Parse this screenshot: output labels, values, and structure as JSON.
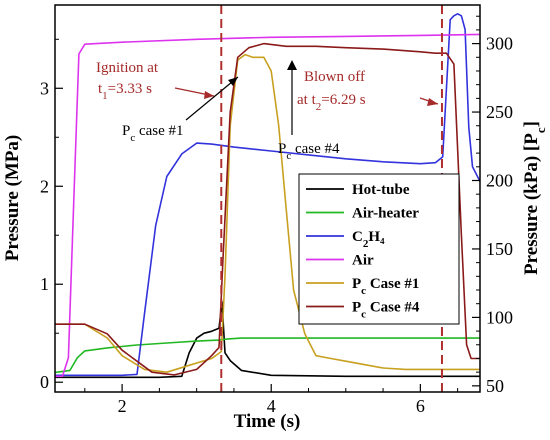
{
  "chart_data": {
    "type": "line",
    "xlabel": "Time (s)",
    "ylabel": "Pressure (MPa)",
    "y2label": "Pressure (kPa) [P",
    "y2label_sub": "c",
    "y2label_end": "]",
    "xlim": [
      1.1,
      6.8
    ],
    "ylim": [
      -0.1,
      3.85
    ],
    "y2lim": [
      45.5,
      328.2
    ],
    "x_ticks": [
      2,
      4,
      6
    ],
    "y_ticks": [
      0,
      1,
      2,
      3
    ],
    "y2_ticks": [
      50,
      100,
      150,
      200,
      250,
      300
    ],
    "grid": false,
    "legend_position": "center-right",
    "series": [
      {
        "name": "Hot-tube",
        "sub": "",
        "name_end": "",
        "axis": "left",
        "color": "#000000",
        "x": [
          1.1,
          1.5,
          2.0,
          2.5,
          2.8,
          2.9,
          3.0,
          3.1,
          3.2,
          3.3,
          3.34,
          3.38,
          3.45,
          3.6,
          4.0,
          5.0,
          6.0,
          6.8
        ],
        "y": [
          0.05,
          0.05,
          0.05,
          0.05,
          0.06,
          0.3,
          0.45,
          0.5,
          0.52,
          0.55,
          0.82,
          0.3,
          0.22,
          0.12,
          0.07,
          0.06,
          0.06,
          0.06
        ]
      },
      {
        "name": "Air-heater",
        "sub": "",
        "name_end": "",
        "axis": "left",
        "color": "#22b822",
        "x": [
          1.1,
          1.3,
          1.4,
          1.5,
          1.8,
          2.2,
          2.6,
          3.0,
          3.3,
          3.4,
          3.6,
          4.0,
          5.0,
          6.0,
          6.8
        ],
        "y": [
          0.1,
          0.12,
          0.25,
          0.32,
          0.35,
          0.38,
          0.4,
          0.42,
          0.43,
          0.44,
          0.45,
          0.45,
          0.45,
          0.45,
          0.45
        ]
      },
      {
        "name": "C",
        "sub": "2",
        "name_end": "H₄",
        "axis": "left",
        "color": "#3333dd",
        "x": [
          1.1,
          2.0,
          2.2,
          2.3,
          2.45,
          2.6,
          2.8,
          3.0,
          3.2,
          3.5,
          4.0,
          4.5,
          5.0,
          5.5,
          6.0,
          6.2,
          6.3,
          6.4,
          6.45,
          6.5,
          6.55,
          6.6,
          6.65,
          6.7,
          6.8
        ],
        "y": [
          0.07,
          0.07,
          0.08,
          0.7,
          1.6,
          2.1,
          2.33,
          2.44,
          2.43,
          2.4,
          2.36,
          2.32,
          2.28,
          2.25,
          2.23,
          2.24,
          2.3,
          3.7,
          3.74,
          3.76,
          3.74,
          3.6,
          2.6,
          2.2,
          2.05
        ]
      },
      {
        "name": "Air",
        "sub": "",
        "name_end": "",
        "axis": "left",
        "color": "#dd33ee",
        "x": [
          1.1,
          1.2,
          1.28,
          1.35,
          1.42,
          1.5,
          2.0,
          3.0,
          4.0,
          5.0,
          6.0,
          6.8
        ],
        "y": [
          0.06,
          0.06,
          0.25,
          1.8,
          3.35,
          3.45,
          3.47,
          3.5,
          3.52,
          3.53,
          3.54,
          3.55
        ]
      },
      {
        "name": "P",
        "sub": "c",
        "name_end": " Case #1",
        "axis": "right",
        "color": "#c8a020",
        "x": [
          1.1,
          1.5,
          1.8,
          2.0,
          2.3,
          2.6,
          2.9,
          3.2,
          3.33,
          3.38,
          3.45,
          3.55,
          3.65,
          3.75,
          3.9,
          4.0,
          4.1,
          4.2,
          4.3,
          4.45,
          4.6,
          4.8,
          5.0,
          5.3,
          5.5,
          5.8,
          6.0,
          6.8
        ],
        "y": [
          95,
          95,
          85,
          72,
          62,
          60,
          65,
          70,
          75,
          130,
          240,
          288,
          292,
          290,
          290,
          280,
          240,
          180,
          120,
          88,
          72,
          70,
          68,
          65,
          63,
          62,
          62,
          62
        ]
      },
      {
        "name": "P",
        "sub": "c",
        "name_end": " Case #4",
        "axis": "right",
        "color": "#8b1a1a",
        "x": [
          1.1,
          1.5,
          1.8,
          2.0,
          2.2,
          2.4,
          2.7,
          3.0,
          3.2,
          3.3,
          3.35,
          3.45,
          3.55,
          3.7,
          3.9,
          4.2,
          4.6,
          5.0,
          5.5,
          6.0,
          6.2,
          6.35,
          6.45,
          6.55,
          6.62,
          6.68,
          6.8
        ],
        "y": [
          95,
          95,
          88,
          76,
          68,
          60,
          58,
          62,
          72,
          78,
          140,
          250,
          290,
          297,
          300,
          298,
          298,
          297,
          296,
          294,
          293,
          293,
          285,
          160,
          80,
          70,
          70
        ]
      }
    ],
    "events": [
      {
        "x": 3.33,
        "color": "#b03030"
      },
      {
        "x": 6.29,
        "color": "#b03030"
      }
    ],
    "annotations": {
      "ignition_line1": "Ignition at",
      "ignition_line2a": "t",
      "ignition_line2_sub": "1",
      "ignition_line2b": "=3.33 s",
      "blown_line1": "Blown off",
      "blown_line2a": "at t",
      "blown_line2_sub": "2",
      "blown_line2b": "=6.29 s",
      "pc1a": "P",
      "pc1_sub": "c",
      "pc1b": " case #1",
      "pc4a": "P",
      "pc4_sub": "c",
      "pc4b": " case #4"
    }
  }
}
